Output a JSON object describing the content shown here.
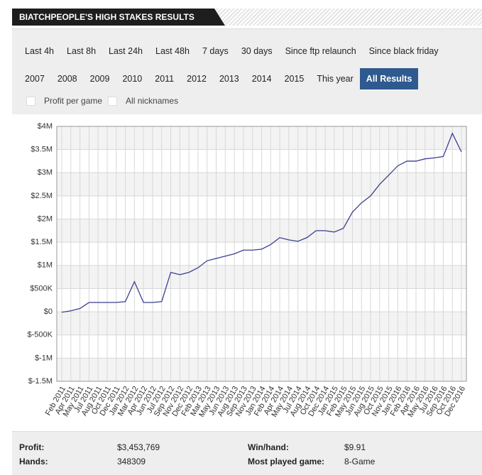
{
  "header": {
    "title": "BIATCHPEOPLE'S HIGH STAKES RESULTS"
  },
  "filters": {
    "periods": [
      {
        "label": "Last 4h"
      },
      {
        "label": "Last 8h"
      },
      {
        "label": "Last 24h"
      },
      {
        "label": "Last 48h"
      },
      {
        "label": "7 days"
      },
      {
        "label": "30 days"
      },
      {
        "label": "Since ftp relaunch"
      },
      {
        "label": "Since black friday"
      }
    ],
    "years": [
      {
        "label": "2007"
      },
      {
        "label": "2008"
      },
      {
        "label": "2009"
      },
      {
        "label": "2010"
      },
      {
        "label": "2011"
      },
      {
        "label": "2012"
      },
      {
        "label": "2013"
      },
      {
        "label": "2014"
      },
      {
        "label": "2015"
      },
      {
        "label": "This year"
      },
      {
        "label": "All Results",
        "active": true
      }
    ],
    "options": [
      {
        "label": "Profit per game"
      },
      {
        "label": "All nicknames"
      }
    ]
  },
  "chart_data": {
    "type": "line",
    "color": "#3b3f8f",
    "categories": [
      "Feb 2011",
      "Apr 2011",
      "May 2011",
      "Jul 2011",
      "Aug 2011",
      "Oct 2011",
      "Dec 2011",
      "Jan 2012",
      "Mar 2012",
      "Apr 2012",
      "Jun 2012",
      "Jul 2012",
      "Sep 2012",
      "Nov 2012",
      "Dec 2012",
      "Feb 2013",
      "Mar 2013",
      "May 2013",
      "Jun 2013",
      "Aug 2013",
      "Sep 2013",
      "Nov 2013",
      "Jan 2014",
      "Feb 2014",
      "Apr 2014",
      "May 2014",
      "Jul 2014",
      "Aug 2014",
      "Oct 2014",
      "Dec 2014",
      "Jan 2015",
      "Feb 2015",
      "May 2015",
      "Jun 2015",
      "Aug 2015",
      "Oct 2015",
      "Nov 2015",
      "Jan 2016",
      "Feb 2016",
      "Apr 2016",
      "May 2016",
      "Jul 2016",
      "Sep 2016",
      "Oct 2016",
      "Dec 2016"
    ],
    "values": [
      -10000,
      20000,
      70000,
      200000,
      200000,
      200000,
      200000,
      220000,
      650000,
      200000,
      200000,
      220000,
      850000,
      800000,
      850000,
      950000,
      1100000,
      1150000,
      1200000,
      1250000,
      1330000,
      1330000,
      1350000,
      1450000,
      1600000,
      1550000,
      1520000,
      1600000,
      1750000,
      1750000,
      1720000,
      1800000,
      2150000,
      2350000,
      2500000,
      2750000,
      2950000,
      3150000,
      3250000,
      3250000,
      3300000,
      3320000,
      3350000,
      3850000,
      3450000
    ],
    "ylim": [
      -1500000,
      4000000
    ],
    "yticks": [
      {
        "value": -1500000,
        "label": "$-1.5M"
      },
      {
        "value": -1000000,
        "label": "$-1M"
      },
      {
        "value": -500000,
        "label": "$-500K"
      },
      {
        "value": 0,
        "label": "$0"
      },
      {
        "value": 500000,
        "label": "$500K"
      },
      {
        "value": 1000000,
        "label": "$1M"
      },
      {
        "value": 1500000,
        "label": "$1.5M"
      },
      {
        "value": 2000000,
        "label": "$2M"
      },
      {
        "value": 2500000,
        "label": "$2.5M"
      },
      {
        "value": 3000000,
        "label": "$3M"
      },
      {
        "value": 3500000,
        "label": "$3.5M"
      },
      {
        "value": 4000000,
        "label": "$4M"
      }
    ],
    "grid": true
  },
  "stats": [
    {
      "label": "Profit:",
      "value": "$3,453,769"
    },
    {
      "label": "Win/hand:",
      "value": "$9.91"
    },
    {
      "label": "Hands:",
      "value": "348309"
    },
    {
      "label": "Most played game:",
      "value": "8-Game"
    }
  ]
}
